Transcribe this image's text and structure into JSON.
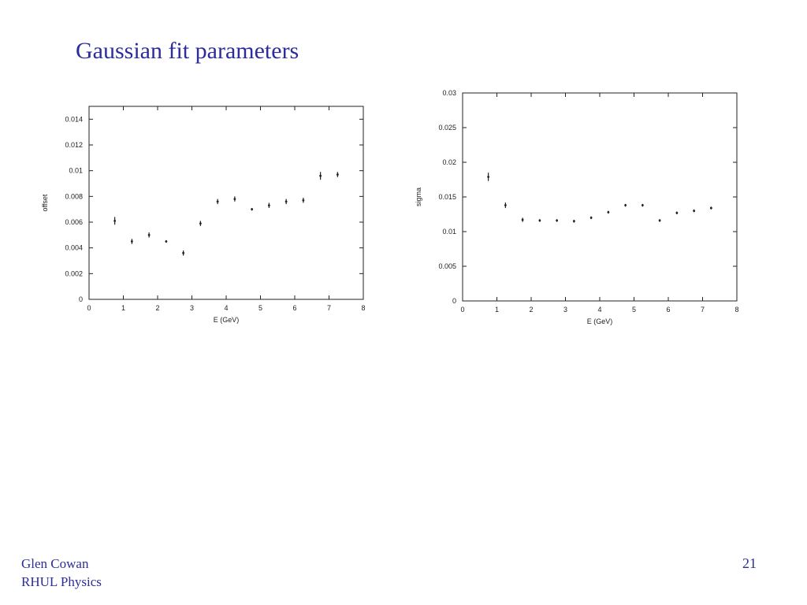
{
  "slide": {
    "title": "Gaussian fit parameters",
    "author": "Glen Cowan",
    "affiliation": "RHUL Physics",
    "page_number": "21"
  },
  "colors": {
    "title": "#2c2c9a",
    "axes": "#222222"
  },
  "chart_data": [
    {
      "type": "scatter",
      "xlabel": "E  (GeV)",
      "ylabel": "offset",
      "xlim": [
        0,
        8
      ],
      "ylim": [
        0,
        0.015
      ],
      "xticks": [
        0,
        1,
        2,
        3,
        4,
        5,
        6,
        7,
        8
      ],
      "xtick_labels": [
        "0",
        "1",
        "2",
        "3",
        "4",
        "5",
        "6",
        "7",
        "8"
      ],
      "yticks": [
        0,
        0.002,
        0.004,
        0.006,
        0.008,
        0.01,
        0.012,
        0.014
      ],
      "ytick_labels": [
        "0",
        "0.002",
        "0.004",
        "0.006",
        "0.008",
        "0.01",
        "0.012",
        "0.014"
      ],
      "grid": false,
      "error_bars": true,
      "points": [
        {
          "x": 0.75,
          "y": 0.0061,
          "err": 0.0003
        },
        {
          "x": 1.25,
          "y": 0.0045,
          "err": 0.0002
        },
        {
          "x": 1.75,
          "y": 0.005,
          "err": 0.0002
        },
        {
          "x": 2.25,
          "y": 0.0045,
          "err": 0.0001
        },
        {
          "x": 2.75,
          "y": 0.0036,
          "err": 0.0002
        },
        {
          "x": 3.25,
          "y": 0.0059,
          "err": 0.0002
        },
        {
          "x": 3.75,
          "y": 0.0076,
          "err": 0.0002
        },
        {
          "x": 4.25,
          "y": 0.0078,
          "err": 0.0002
        },
        {
          "x": 4.75,
          "y": 0.007,
          "err": 0.0001
        },
        {
          "x": 5.25,
          "y": 0.0073,
          "err": 0.0002
        },
        {
          "x": 5.75,
          "y": 0.0076,
          "err": 0.0002
        },
        {
          "x": 6.25,
          "y": 0.0077,
          "err": 0.0002
        },
        {
          "x": 6.75,
          "y": 0.0096,
          "err": 0.0003
        },
        {
          "x": 7.25,
          "y": 0.0097,
          "err": 0.0002
        }
      ]
    },
    {
      "type": "scatter",
      "xlabel": "E  (GeV)",
      "ylabel": "sigma",
      "xlim": [
        0,
        8
      ],
      "ylim": [
        0,
        0.03
      ],
      "xticks": [
        0,
        1,
        2,
        3,
        4,
        5,
        6,
        7,
        8
      ],
      "xtick_labels": [
        "0",
        "1",
        "2",
        "3",
        "4",
        "5",
        "6",
        "7",
        "8"
      ],
      "yticks": [
        0,
        0.005,
        0.01,
        0.015,
        0.02,
        0.025,
        0.03
      ],
      "ytick_labels": [
        "0",
        "0.005",
        "0.01",
        "0.015",
        "0.02",
        "0.025",
        "0.03"
      ],
      "grid": false,
      "error_bars": true,
      "points": [
        {
          "x": 0.75,
          "y": 0.0179,
          "err": 0.0006
        },
        {
          "x": 1.25,
          "y": 0.0138,
          "err": 0.0004
        },
        {
          "x": 1.75,
          "y": 0.0117,
          "err": 0.0003
        },
        {
          "x": 2.25,
          "y": 0.0116,
          "err": 0.0002
        },
        {
          "x": 2.75,
          "y": 0.0116,
          "err": 0.0002
        },
        {
          "x": 3.25,
          "y": 0.0115,
          "err": 0.0002
        },
        {
          "x": 3.75,
          "y": 0.012,
          "err": 0.0002
        },
        {
          "x": 4.25,
          "y": 0.0128,
          "err": 0.0002
        },
        {
          "x": 4.75,
          "y": 0.0138,
          "err": 0.0002
        },
        {
          "x": 5.25,
          "y": 0.0138,
          "err": 0.0002
        },
        {
          "x": 5.75,
          "y": 0.0116,
          "err": 0.0002
        },
        {
          "x": 6.25,
          "y": 0.0127,
          "err": 0.0002
        },
        {
          "x": 6.75,
          "y": 0.013,
          "err": 0.0002
        },
        {
          "x": 7.25,
          "y": 0.0134,
          "err": 0.0002
        }
      ]
    }
  ]
}
